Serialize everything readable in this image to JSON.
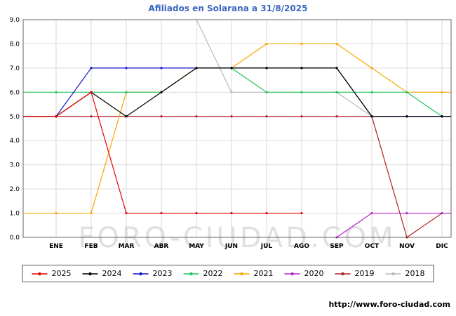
{
  "chart_data": {
    "type": "line",
    "title": "Afiliados en Solarana a 31/8/2025",
    "title_color": "#3a66c0",
    "x_categories": [
      "ENE",
      "FEB",
      "MAR",
      "ABR",
      "MAY",
      "JUN",
      "JUL",
      "AGO",
      "SEP",
      "OCT",
      "NOV",
      "DIC"
    ],
    "xlabel": "",
    "ylabel": "",
    "ylim": [
      0,
      9
    ],
    "y_tick_interval": 1,
    "y_tick_labels": [
      "0.0",
      "1.0",
      "2.0",
      "3.0",
      "4.0",
      "5.0",
      "6.0",
      "7.0",
      "8.0",
      "9.0"
    ],
    "grid": true,
    "grid_color": "#d9d9d9",
    "legend_position": "bottom",
    "series": [
      {
        "name": "2025",
        "color": "#e60000",
        "values": [
          5,
          6,
          1,
          1,
          1,
          1,
          1,
          1,
          null,
          null,
          null,
          null
        ]
      },
      {
        "name": "2024",
        "color": "#000000",
        "values": [
          5,
          6,
          5,
          6,
          7,
          7,
          7,
          7,
          7,
          5,
          5,
          5
        ]
      },
      {
        "name": "2023",
        "color": "#1414cc",
        "values": [
          5,
          7,
          7,
          7,
          7,
          7,
          7,
          7,
          7,
          5,
          5,
          5
        ]
      },
      {
        "name": "2022",
        "color": "#22c55a",
        "values": [
          6,
          6,
          6,
          6,
          7,
          7,
          6,
          6,
          6,
          6,
          6,
          5
        ]
      },
      {
        "name": "2021",
        "color": "#f7a800",
        "values": [
          1,
          1,
          6,
          6,
          7,
          7,
          8,
          8,
          8,
          7,
          6,
          6
        ]
      },
      {
        "name": "2020",
        "color": "#b520c8",
        "values": [
          null,
          null,
          null,
          null,
          null,
          null,
          null,
          null,
          0,
          1,
          1,
          1
        ]
      },
      {
        "name": "2019",
        "color": "#b22222",
        "values": [
          5,
          5,
          5,
          5,
          5,
          5,
          5,
          5,
          5,
          5,
          0,
          1
        ]
      },
      {
        "name": "2018",
        "color": "#b8b8b8",
        "values": [
          null,
          null,
          null,
          null,
          9,
          6,
          6,
          6,
          6,
          5,
          5,
          5
        ]
      }
    ]
  },
  "watermark": "FORO-CIUDAD.COM",
  "footer": {
    "url": "http://www.foro-ciudad.com"
  }
}
